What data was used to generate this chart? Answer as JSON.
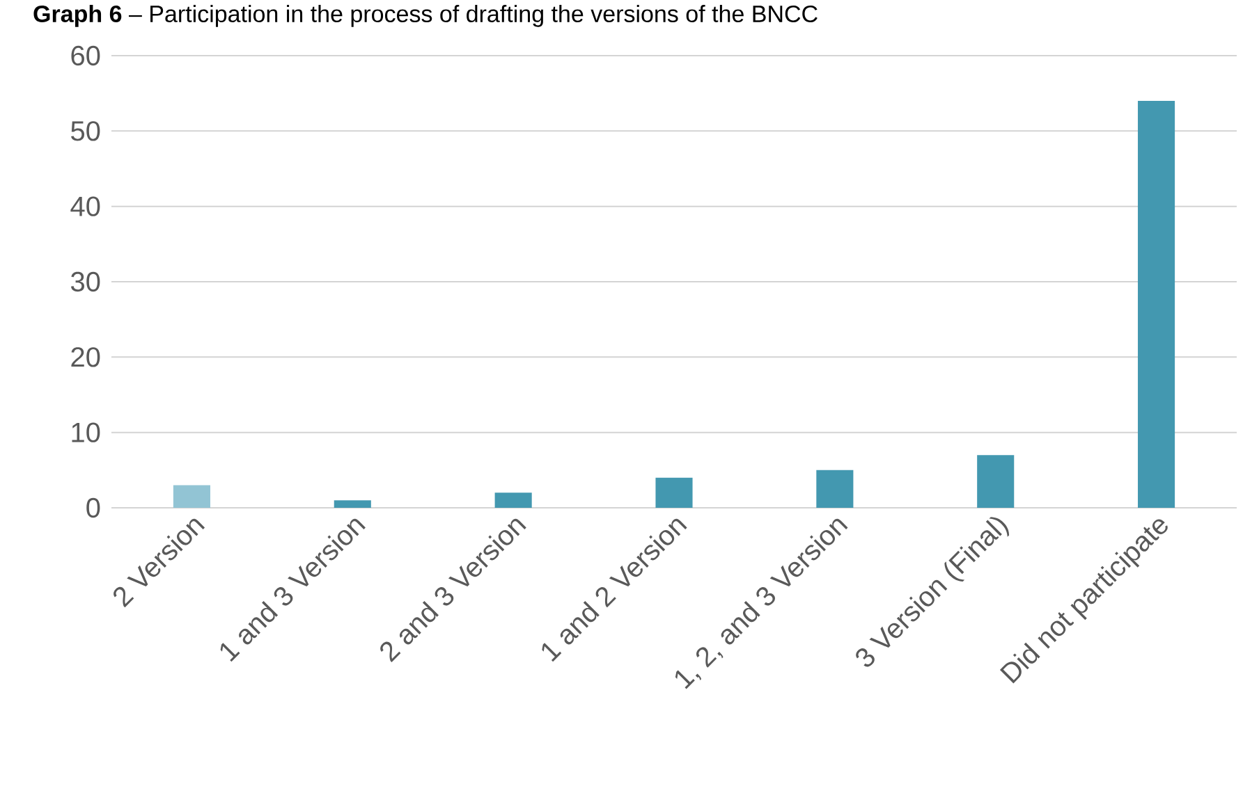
{
  "chart_data": {
    "type": "bar",
    "title": "**Graph 6** – Participation in the process of drafting the versions of the BNCC",
    "categories": [
      "2 Version",
      "1 and 3 Version",
      "2 and 3 Version",
      "1 and 2 Version",
      "1, 2, and 3 Version",
      "3 Version (Final)",
      "Did not participate"
    ],
    "values": [
      3,
      1,
      2,
      4,
      5,
      7,
      54
    ],
    "colors": [
      "#92c4d4",
      "#4398b0",
      "#4398b0",
      "#4398b0",
      "#4398b0",
      "#4398b0",
      "#4398b0"
    ],
    "ylim": [
      0,
      60
    ],
    "yticks": [
      0,
      10,
      20,
      30,
      40,
      50,
      60
    ],
    "grid": "y"
  }
}
